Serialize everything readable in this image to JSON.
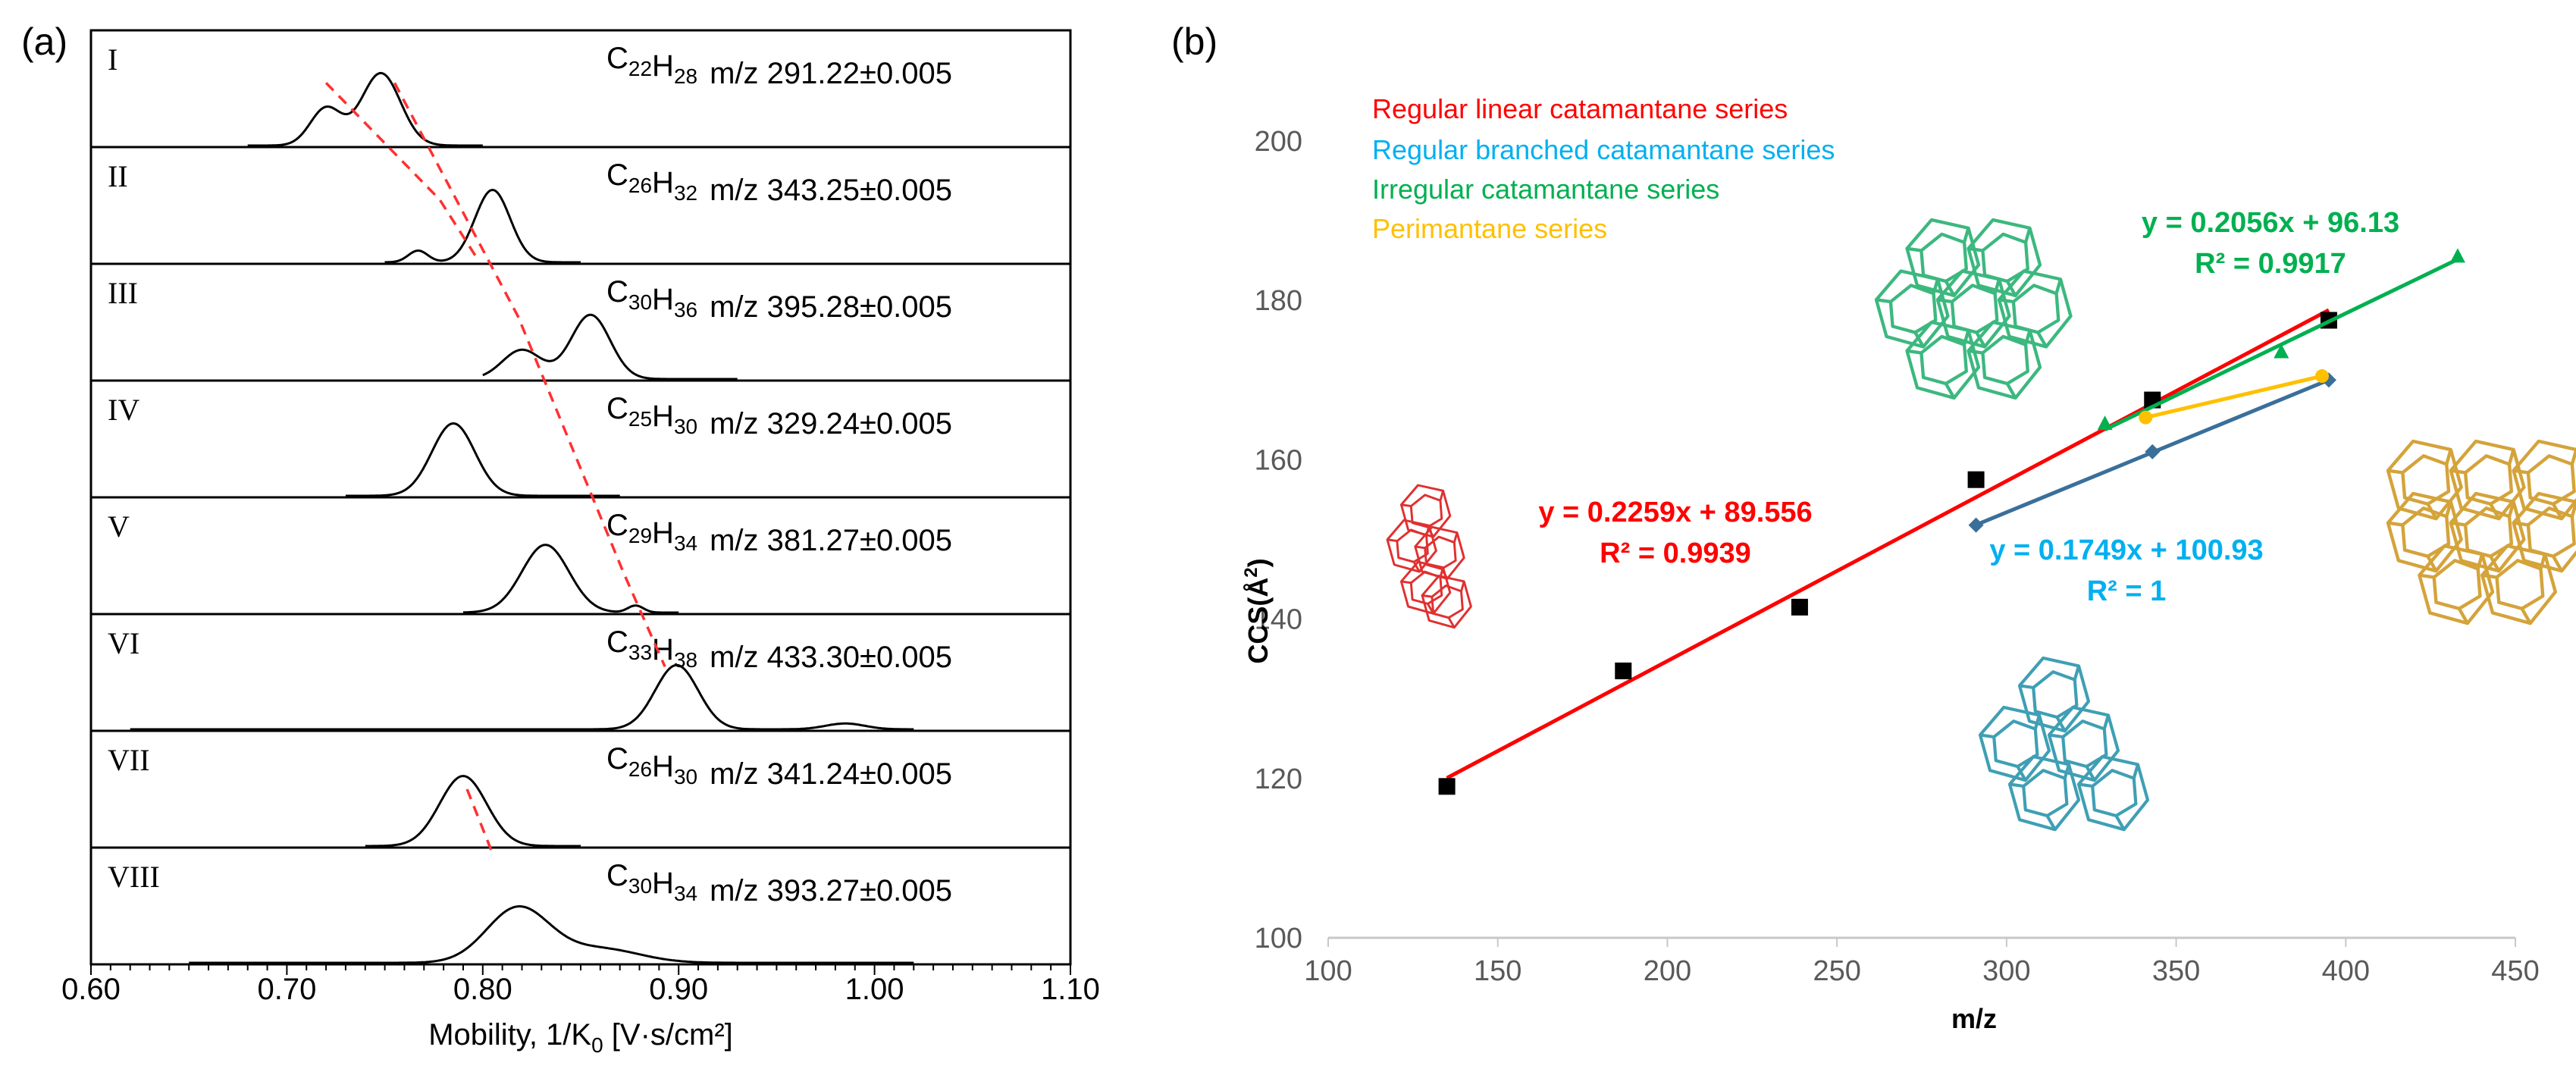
{
  "panel_a": {
    "label": "(a)",
    "xlabel_main": "Mobility, 1/K",
    "xlabel_sub": "0",
    "xlabel_unit": " [V·s/cm²]",
    "xticks": [
      "0.60",
      "0.70",
      "0.80",
      "0.90",
      "1.00",
      "1.10"
    ]
  },
  "panel_b": {
    "label": "(b)",
    "xlabel": "m/z",
    "ylabel_main": "CCS(Å",
    "ylabel_sup": "2",
    "ylabel_end": ")",
    "legend": [
      {
        "label": "Regular linear catamantane series",
        "color": "#ff0000"
      },
      {
        "label": "Regular branched catamantane series",
        "color": "#00b0f0"
      },
      {
        "label": "Irregular catamantane series",
        "color": "#00b050"
      },
      {
        "label": "Perimantane series",
        "color": "#ffc000"
      }
    ],
    "equations": [
      {
        "eq": "y = 0.2259x + 89.556",
        "r2": "R² = 0.9939",
        "color": "#ff0000"
      },
      {
        "eq": "y = 0.1749x + 100.93",
        "r2": "R² = 1",
        "color": "#00b0f0"
      },
      {
        "eq": "y = 0.2056x + 96.13",
        "r2": "R² = 0.9917",
        "color": "#00b050"
      }
    ],
    "structure_colors": [
      "#e03030",
      "#3cb87f",
      "#3f9fb4",
      "#d4a33a"
    ]
  },
  "chart_data": [
    {
      "type": "line",
      "panel": "(a)",
      "xlabel": "Mobility, 1/K0 [V·s/cm²]",
      "xlim": [
        0.6,
        1.1
      ],
      "ticks": [
        "0.60",
        "0.70",
        "0.80",
        "0.90",
        "1.00",
        "1.10"
      ],
      "series": [
        {
          "name": "I",
          "formula": [
            [
              "C",
              "22"
            ],
            [
              "H",
              "28"
            ]
          ],
          "mz": "m/z 291.22±0.005",
          "peaks": [
            {
              "x": 0.72,
              "h": 0.32,
              "w": 0.008
            },
            {
              "x": 0.748,
              "h": 0.62,
              "w": 0.01
            }
          ],
          "range": [
            0.68,
            0.8
          ]
        },
        {
          "name": "II",
          "formula": [
            [
              "C",
              "26"
            ],
            [
              "H",
              "32"
            ]
          ],
          "mz": "m/z 343.25±0.005",
          "peaks": [
            {
              "x": 0.767,
              "h": 0.1,
              "w": 0.005
            },
            {
              "x": 0.805,
              "h": 0.62,
              "w": 0.009
            }
          ],
          "range": [
            0.75,
            0.85
          ]
        },
        {
          "name": "III",
          "formula": [
            [
              "C",
              "30"
            ],
            [
              "H",
              "36"
            ]
          ],
          "mz": "m/z 395.28±0.005",
          "peaks": [
            {
              "x": 0.82,
              "h": 0.25,
              "w": 0.01
            },
            {
              "x": 0.855,
              "h": 0.55,
              "w": 0.01
            }
          ],
          "range": [
            0.8,
            0.93
          ]
        },
        {
          "name": "IV",
          "formula": [
            [
              "C",
              "25"
            ],
            [
              "H",
              "30"
            ]
          ],
          "mz": "m/z 329.24±0.005",
          "peaks": [
            {
              "x": 0.785,
              "h": 0.62,
              "w": 0.011
            }
          ],
          "range": [
            0.73,
            0.87
          ]
        },
        {
          "name": "V",
          "formula": [
            [
              "C",
              "29"
            ],
            [
              "H",
              "34"
            ]
          ],
          "mz": "m/z 381.27±0.005",
          "peaks": [
            {
              "x": 0.832,
              "h": 0.58,
              "w": 0.012
            },
            {
              "x": 0.878,
              "h": 0.06,
              "w": 0.004
            }
          ],
          "range": [
            0.79,
            0.9
          ]
        },
        {
          "name": "VI",
          "formula": [
            [
              "C",
              "33"
            ],
            [
              "H",
              "38"
            ]
          ],
          "mz": "m/z 433.30±0.005",
          "peaks": [
            {
              "x": 0.899,
              "h": 0.55,
              "w": 0.011
            },
            {
              "x": 0.985,
              "h": 0.05,
              "w": 0.01
            }
          ],
          "range": [
            0.62,
            1.02
          ]
        },
        {
          "name": "VII",
          "formula": [
            [
              "C",
              "26"
            ],
            [
              "H",
              "30"
            ]
          ],
          "mz": "m/z 341.24±0.005",
          "peaks": [
            {
              "x": 0.79,
              "h": 0.6,
              "w": 0.012
            }
          ],
          "range": [
            0.74,
            0.85
          ]
        },
        {
          "name": "VIII",
          "formula": [
            [
              "C",
              "30"
            ],
            [
              "H",
              "34"
            ]
          ],
          "mz": "m/z 393.27±0.005",
          "peaks": [
            {
              "x": 0.818,
              "h": 0.47,
              "w": 0.016
            },
            {
              "x": 0.86,
              "h": 0.12,
              "w": 0.02
            }
          ],
          "range": [
            0.65,
            1.02
          ]
        }
      ],
      "dashed_trends": [
        {
          "points": [
            [
              0.755,
              0
            ],
            [
              0.818,
              2
            ],
            [
              0.872,
              4.2
            ],
            [
              0.893,
              5
            ]
          ]
        },
        {
          "points": [
            [
              0.72,
              0
            ],
            [
              0.778,
              1
            ],
            [
              0.797,
              1.5
            ]
          ]
        },
        {
          "points": [
            [
              0.792,
              6.05
            ],
            [
              0.805,
              6.6
            ]
          ]
        }
      ]
    },
    {
      "type": "scatter",
      "panel": "(b)",
      "xlabel": "m/z",
      "ylabel": "CCS(Å2)",
      "xlim": [
        100,
        450
      ],
      "ylim": [
        100,
        200
      ],
      "xticks": [
        100,
        150,
        200,
        250,
        300,
        350,
        400,
        450
      ],
      "yticks": [
        100,
        120,
        140,
        160,
        180,
        200
      ],
      "series": [
        {
          "name": "Regular linear catamantane series",
          "marker": "square",
          "color": "#000000",
          "linecolor": "#ff0000",
          "x": [
            135,
            187,
            239,
            291,
            343,
            395
          ],
          "y": [
            119,
            133.5,
            141.5,
            157.5,
            167.5,
            177.5
          ],
          "fit": {
            "slope": 0.2259,
            "intercept": 89.556
          }
        },
        {
          "name": "Regular branched catamantane series",
          "marker": "diamond",
          "color": "#3a6f9a",
          "linecolor": "#3a6f9a",
          "x": [
            291,
            343,
            395
          ],
          "y": [
            151.8,
            161.0,
            170.0
          ],
          "fit": {
            "slope": 0.1749,
            "intercept": 100.93
          }
        },
        {
          "name": "Irregular catamantane series",
          "marker": "triangle",
          "color": "#00b050",
          "linecolor": "#00b050",
          "x": [
            329,
            381,
            433
          ],
          "y": [
            164.5,
            173.5,
            185.5
          ],
          "fit": {
            "slope": 0.2056,
            "intercept": 96.13
          }
        },
        {
          "name": "Perimantane series",
          "marker": "circle",
          "color": "#ffc000",
          "linecolor": "#ffc000",
          "x": [
            341,
            393
          ],
          "y": [
            165.3,
            170.5
          ],
          "fit": {
            "connect": true
          }
        }
      ]
    }
  ]
}
